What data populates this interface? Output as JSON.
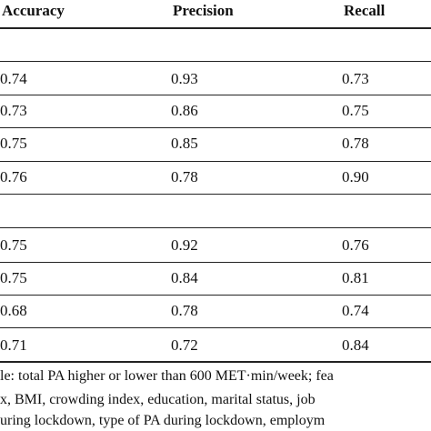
{
  "table": {
    "headers": [
      "Accuracy",
      "Precision",
      "Recall"
    ],
    "rows": [
      [
        "0.74",
        "0.93",
        "0.73"
      ],
      [
        "0.73",
        "0.86",
        "0.75"
      ],
      [
        "0.75",
        "0.85",
        "0.78"
      ],
      [
        "0.76",
        "0.78",
        "0.90"
      ],
      [
        "0.75",
        "0.92",
        "0.76"
      ],
      [
        "0.75",
        "0.84",
        "0.81"
      ],
      [
        "0.68",
        "0.78",
        "0.74"
      ],
      [
        "0.71",
        "0.72",
        "0.84"
      ]
    ]
  },
  "footnote": [
    "le: total PA higher or lower than 600 MET·min/week; fea",
    "x, BMI, crowding index, education, marital status, job",
    "uring lockdown, type of PA during lockdown, employm"
  ]
}
